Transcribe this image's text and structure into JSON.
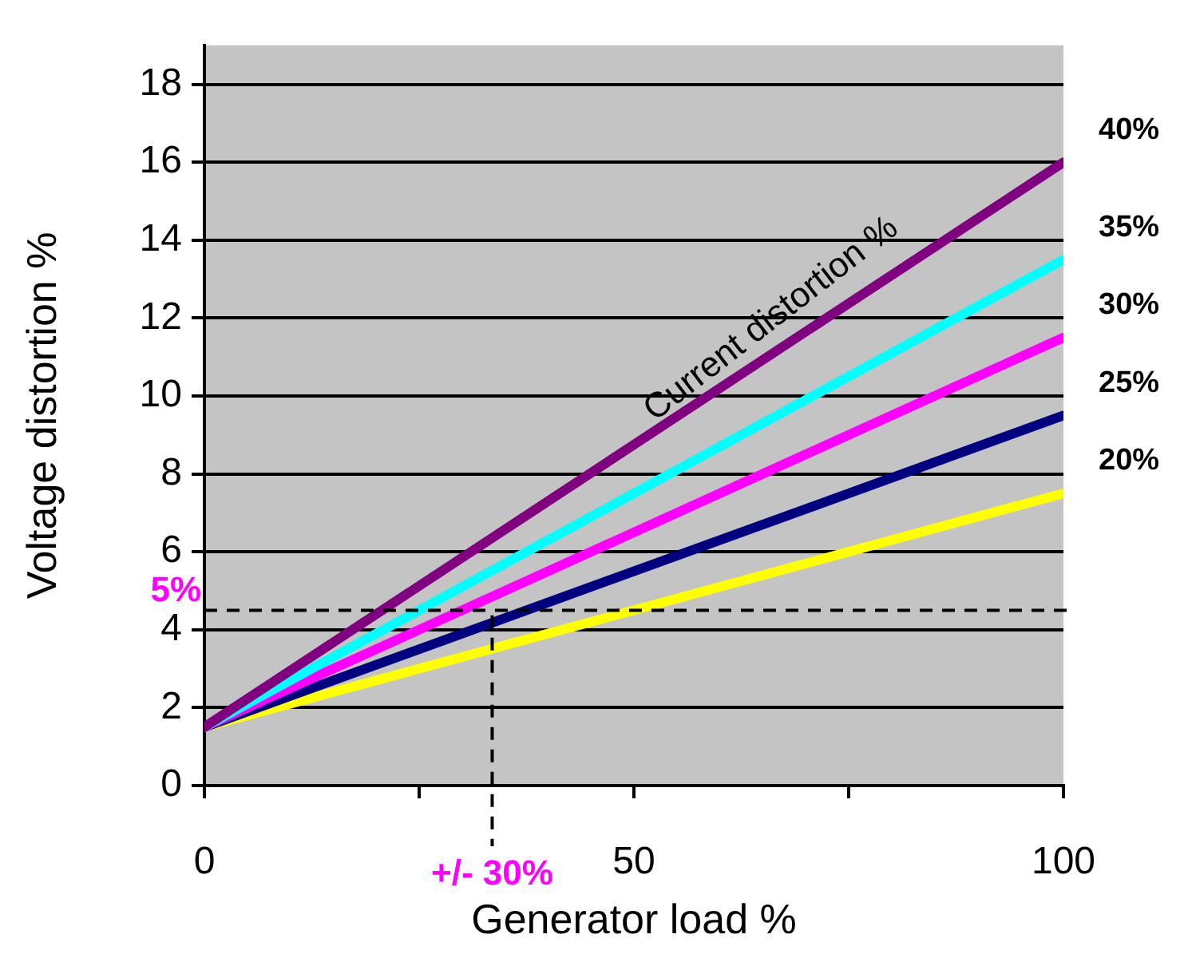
{
  "chart_data": {
    "type": "line",
    "xlabel": "Generator load %",
    "ylabel": "Voltage distortion %",
    "x": [
      0,
      100
    ],
    "series": [
      {
        "name": "40%",
        "color": "#800080",
        "values": [
          1.5,
          16
        ]
      },
      {
        "name": "35%",
        "color": "#00ffff",
        "values": [
          1.5,
          13.5
        ]
      },
      {
        "name": "30%",
        "color": "#ff00ff",
        "values": [
          1.5,
          11.5
        ]
      },
      {
        "name": "25%",
        "color": "#000080",
        "values": [
          1.5,
          9.5
        ]
      },
      {
        "name": "20%",
        "color": "#ffff00",
        "values": [
          1.5,
          7.5
        ]
      }
    ],
    "xlim": [
      0,
      100
    ],
    "xticks": [
      0,
      {
        "value": 25,
        "label": null
      },
      50,
      {
        "value": 75,
        "label": null
      },
      100
    ],
    "ylim": [
      0,
      19
    ],
    "yticks": [
      0,
      2,
      4,
      6,
      8,
      10,
      12,
      14,
      16,
      18
    ],
    "grid": "y",
    "legend": false,
    "marker": "none",
    "line_style": "solid",
    "ref_lines": [
      {
        "axis": "y",
        "value": 4.5,
        "label": "5%",
        "line_style": "dashed"
      },
      {
        "axis": "x",
        "value": 33.5,
        "line_style": "dashed"
      }
    ],
    "annotations": [
      "Current distortion %",
      "+/- 30%"
    ]
  }
}
